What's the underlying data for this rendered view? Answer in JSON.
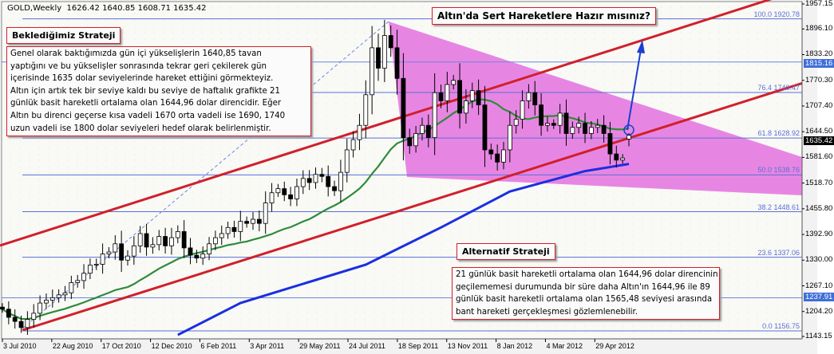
{
  "header": {
    "symbol": "GOLD,Weekly",
    "ohlc": "1626.42 1640.85 1608.71 1635.42"
  },
  "title_box": "Altın'da Sert Hareketlere Hazır mısınız?",
  "strategy_box": {
    "title": "Beklediğimiz Strateji",
    "lines": [
      "Genel olarak baktığımızda gün içi yükselişlerin 1640,85 tavan",
      "yaptığını ve bu yükselişler sonrasında tekrar geri çekilerek gün",
      "içerisinde 1635 dolar seviyelerinde hareket ettiğini görmekteyiz.",
      "Altın için artık tek bir seviye kaldı bu seviye de haftalık grafikte 21",
      "günlük basit hareketli ortalama olan 1644,96 dolar direncidir. Eğer",
      "Altın bu direnci geçerse kısa vadeli 1670 orta vadeli ise 1690, 1740",
      "uzun vadeli ise 1800 dolar seviyeleri hedef olarak belirlenmiştir."
    ]
  },
  "alt_box": {
    "title": "Alternatif Strateji",
    "lines": [
      "21 günlük basit hareketli ortalama olan 1644,96 dolar direncinin",
      "geçilememesi durumunda bir süre daha Altın'ın 1644,96 ile 89",
      "günlük basit hareketli ortalama olan  1565,48 seviyesi arasında",
      "bant hareketi gerçekleşmesi gözlemlenebilir."
    ]
  },
  "chart_data": {
    "type": "candlestick",
    "ylim": [
      1143.15,
      1957.15
    ],
    "y_ticks": [
      "1957.15",
      "1896.10",
      "1833.20",
      "1770.30",
      "1707.40",
      "1644.50",
      "1581.60",
      "1518.70",
      "1455.80",
      "1392.90",
      "1330.00",
      "1267.10",
      "1204.20",
      "1143.15"
    ],
    "x_ticks": [
      "3 Jul 2010",
      "22 Aug 2010",
      "17 Oct 2010",
      "12 Dec 2010",
      "6 Feb 2011",
      "3 Apr 2011",
      "29 May 2011",
      "24 Jul 2011",
      "18 Sep 2011",
      "13 Nov 2011",
      "8 Jan 2012",
      "4 Mar 2012",
      "29 Apr 2012"
    ],
    "closes": [
      1210,
      1190,
      1180,
      1165,
      1185,
      1200,
      1225,
      1232,
      1238,
      1245,
      1250,
      1275,
      1280,
      1298,
      1318,
      1320,
      1345,
      1350,
      1370,
      1330,
      1340,
      1365,
      1395,
      1362,
      1368,
      1388,
      1365,
      1385,
      1400,
      1360,
      1342,
      1335,
      1345,
      1370,
      1385,
      1395,
      1410,
      1400,
      1425,
      1420,
      1430,
      1420,
      1470,
      1495,
      1505,
      1490,
      1480,
      1510,
      1530,
      1520,
      1540,
      1535,
      1510,
      1500,
      1545,
      1600,
      1625,
      1660,
      1735,
      1850,
      1800,
      1880,
      1850,
      1775,
      1630,
      1610,
      1640,
      1660,
      1630,
      1740,
      1720,
      1760,
      1770,
      1690,
      1720,
      1745,
      1710,
      1600,
      1590,
      1570,
      1600,
      1660,
      1675,
      1720,
      1740,
      1710,
      1660,
      1665,
      1660,
      1690,
      1640,
      1655,
      1665,
      1640,
      1655,
      1660,
      1640,
      1590,
      1575,
      1580,
      1635.42
    ],
    "last_candle": {
      "open": 1626.42,
      "high": 1640.85,
      "low": 1608.71,
      "close": 1635.42
    },
    "sma21_period": 21,
    "sma89_points": [
      [
        28,
        1147
      ],
      [
        38,
        1225
      ],
      [
        58,
        1319
      ],
      [
        70,
        1410
      ],
      [
        81,
        1498
      ],
      [
        93,
        1548
      ],
      [
        100,
        1565.48
      ]
    ],
    "fibonacci": [
      {
        "level": "100.0",
        "price": 1920.78
      },
      {
        "level": "76.4",
        "price": 1740.47
      },
      {
        "level": "61.8",
        "price": 1628.92
      },
      {
        "level": "50.0",
        "price": 1538.76
      },
      {
        "level": "38.2",
        "price": 1448.61
      },
      {
        "level": "23.6",
        "price": 1337.06
      },
      {
        "level": "0.0",
        "price": 1156.75
      }
    ],
    "highlighted_levels": [
      "1815.16",
      "1237.91"
    ],
    "last_price": "1635.42",
    "colors": {
      "sma21": "#2e8b3a",
      "sma89": "#1a2fe0",
      "channel": "#d0202a",
      "triangle": "#e67fe0",
      "fib": "#5a6fd8",
      "arrow": "#1a3fd0"
    }
  }
}
